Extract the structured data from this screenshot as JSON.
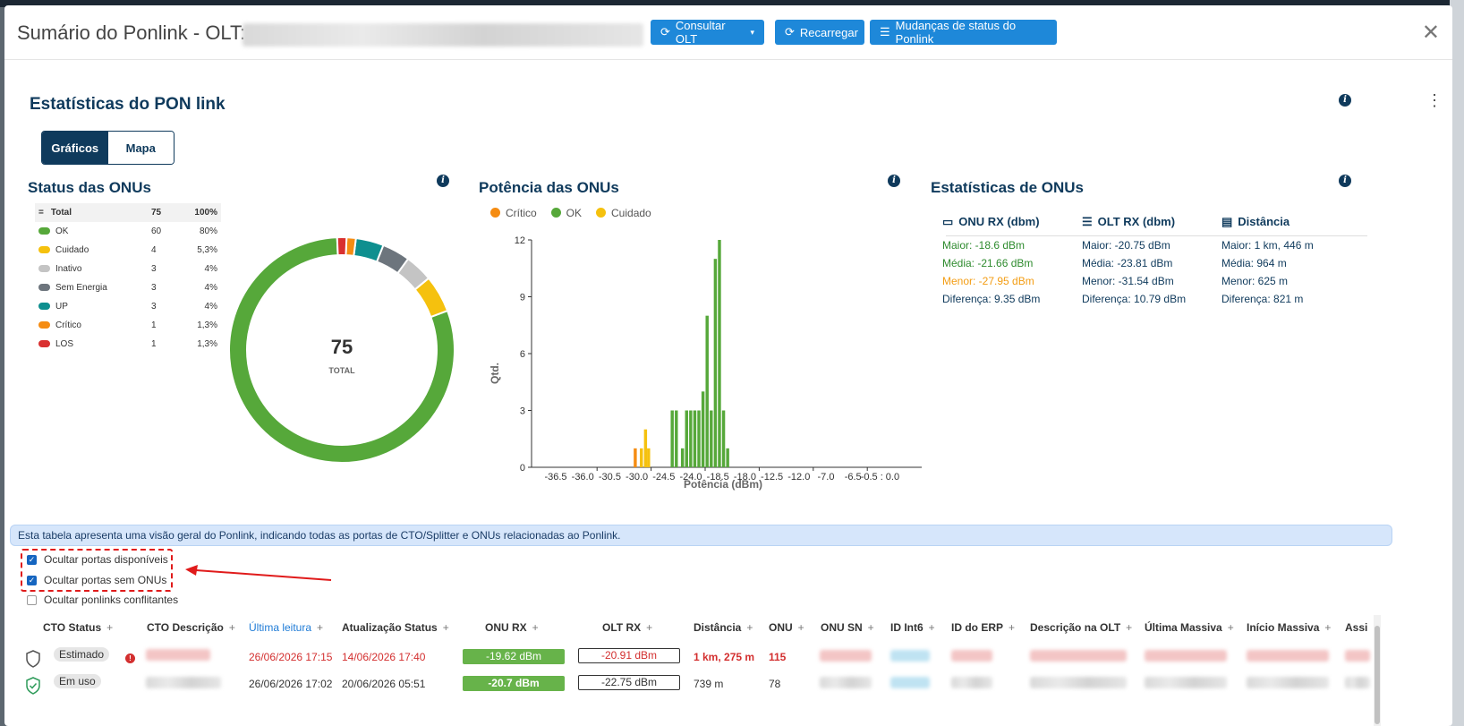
{
  "modal": {
    "title": "Sumário do Ponlink - OLT:",
    "buttons": {
      "consultar": "Consultar OLT",
      "recarregar": "Recarregar",
      "mudancas": "Mudanças de status do Ponlink"
    }
  },
  "section": {
    "title": "Estatísticas do PON link",
    "tabs": [
      "Gráficos",
      "Mapa"
    ]
  },
  "status_panel": {
    "title": "Status das ONUs",
    "legend_header": {
      "label": "Total",
      "count": "75",
      "pct": "100%"
    },
    "legend": [
      {
        "label": "OK",
        "count": "60",
        "pct": "80%",
        "color": "#56a83a"
      },
      {
        "label": "Cuidado",
        "count": "4",
        "pct": "5,3%",
        "color": "#f5c10e"
      },
      {
        "label": "Inativo",
        "count": "3",
        "pct": "4%",
        "color": "#c4c4c4"
      },
      {
        "label": "Sem Energia",
        "count": "3",
        "pct": "4%",
        "color": "#6d757d"
      },
      {
        "label": "UP",
        "count": "3",
        "pct": "4%",
        "color": "#0e8f8f"
      },
      {
        "label": "Crítico",
        "count": "1",
        "pct": "1,3%",
        "color": "#f58c12"
      },
      {
        "label": "LOS",
        "count": "1",
        "pct": "1,3%",
        "color": "#d93030"
      }
    ],
    "center_value": "75",
    "center_label": "TOTAL"
  },
  "power_panel": {
    "title": "Potência das ONUs",
    "legend": [
      {
        "label": "Crítico",
        "color": "#f58c12"
      },
      {
        "label": "OK",
        "color": "#56a83a"
      },
      {
        "label": "Cuidado",
        "color": "#f5c10e"
      }
    ]
  },
  "chart_data": [
    {
      "type": "pie",
      "title": "Status das ONUs",
      "categories": [
        "OK",
        "Cuidado",
        "Inativo",
        "Sem Energia",
        "UP",
        "Crítico",
        "LOS"
      ],
      "values": [
        60,
        4,
        3,
        3,
        3,
        1,
        1
      ],
      "colors": [
        "#56a83a",
        "#f5c10e",
        "#c4c4c4",
        "#6d757d",
        "#0e8f8f",
        "#f58c12",
        "#d93030"
      ],
      "center_text": "75"
    },
    {
      "type": "bar",
      "title": "Potência das ONUs",
      "xlabel": "Potência (dBm)",
      "ylabel": "Qtd.",
      "xlim": [
        -38.0,
        0.0
      ],
      "ylim": [
        0,
        12
      ],
      "yticks": [
        "0",
        "3",
        "6",
        "9",
        "12"
      ],
      "xticks": [
        "-36.5",
        "-36.0",
        "-30.5",
        "-30.0",
        "-24.5",
        "-24.0",
        "-18.5",
        "-18.0",
        "-12.5",
        "-12.0",
        "-7.0",
        "-6.5",
        "-0.5 : 0.0"
      ],
      "bar_width": 0.3,
      "series": [
        {
          "name": "Crítico",
          "color": "#f58c12",
          "x": [
            -27.9
          ],
          "values": [
            1
          ]
        },
        {
          "name": "Cuidado",
          "color": "#f5c10e",
          "x": [
            -27.3,
            -26.9,
            -26.6
          ],
          "values": [
            1,
            2,
            1
          ]
        },
        {
          "name": "OK",
          "color": "#56a83a",
          "x": [
            -24.3,
            -23.9,
            -23.3,
            -22.9,
            -22.5,
            -22.1,
            -21.7,
            -21.3,
            -20.9,
            -20.5,
            -20.1,
            -19.7,
            -19.3,
            -18.9
          ],
          "values": [
            3,
            3,
            1,
            3,
            3,
            3,
            3,
            4,
            8,
            3,
            11,
            12,
            3,
            1
          ]
        }
      ]
    }
  ],
  "stats_panel": {
    "title": "Estatísticas de ONUs",
    "columns": [
      {
        "head": "ONU RX (dbm)",
        "icon": "router-icon",
        "rows": [
          "Maior: -18.6 dBm",
          "Média: -21.66 dBm",
          "Menor: -27.95 dBm",
          "Diferença: 9.35 dBm"
        ],
        "colors": [
          "#2e8b2e",
          "#2e8b2e",
          "#f39c12",
          "#0f3a5c"
        ]
      },
      {
        "head": "OLT RX (dbm)",
        "icon": "server-icon",
        "rows": [
          "Maior: -20.75 dBm",
          "Média: -23.81 dBm",
          "Menor: -31.54 dBm",
          "Diferença: 10.79 dBm"
        ],
        "colors": [
          "#0f3a5c",
          "#0f3a5c",
          "#0f3a5c",
          "#0f3a5c"
        ]
      },
      {
        "head": "Distância",
        "icon": "ruler-icon",
        "rows": [
          "Maior: 1 km, 446 m",
          "Média: 964 m",
          "Menor: 625 m",
          "Diferença: 821 m"
        ],
        "colors": [
          "#0f3a5c",
          "#0f3a5c",
          "#0f3a5c",
          "#0f3a5c"
        ]
      }
    ]
  },
  "info_banner": "Esta tabela apresenta uma visão geral do Ponlink, indicando todas as portas de CTO/Splitter e ONUs relacionadas ao Ponlink.",
  "filters": [
    {
      "label": "Ocultar portas disponíveis",
      "checked": true
    },
    {
      "label": "Ocultar portas sem ONUs",
      "checked": true
    },
    {
      "label": "Ocultar ponlinks conflitantes",
      "checked": false
    }
  ],
  "table": {
    "columns": [
      "CTO Status",
      "CTO Descrição",
      "Última leitura",
      "Atualização Status",
      "ONU RX",
      "OLT RX",
      "Distância",
      "ONU",
      "ONU SN",
      "ID Int6",
      "ID do ERP",
      "Descrição na OLT",
      "Última Massiva",
      "Início Massiva",
      "Assi"
    ],
    "rows": [
      {
        "status": "Estimado",
        "last_read": "26/06/2026 17:15",
        "status_update": "14/06/2026 17:40",
        "onu_rx": "-19.62 dBm",
        "olt_rx": "-20.91 dBm",
        "distance": "1 km, 275 m",
        "onu": "115"
      },
      {
        "status": "Em uso",
        "last_read": "26/06/2026 17:02",
        "status_update": "20/06/2026 05:51",
        "onu_rx": "-20.7 dBm",
        "olt_rx": "-22.75 dBm",
        "distance": "739 m",
        "onu": "78"
      }
    ]
  }
}
